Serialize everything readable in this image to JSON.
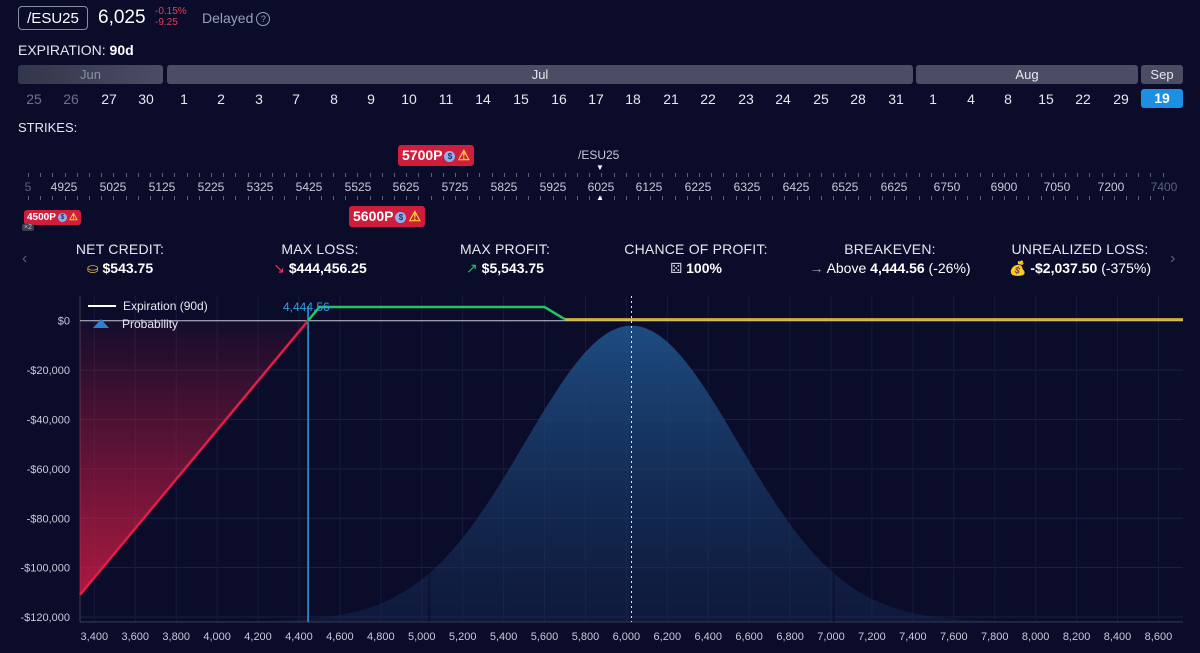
{
  "header": {
    "symbol": "/ESU25",
    "price": "6,025",
    "change_pct": "-0.15%",
    "change_abs": "-9.25",
    "status": "Delayed",
    "help_icon": "help-circle-icon"
  },
  "expiration": {
    "label": "EXPIRATION:",
    "value": "90d",
    "months": [
      "Jun",
      "Jul",
      "Aug",
      "Sep"
    ],
    "days": [
      "25",
      "26",
      "27",
      "30",
      "1",
      "2",
      "3",
      "7",
      "8",
      "9",
      "10",
      "11",
      "14",
      "15",
      "16",
      "17",
      "18",
      "21",
      "22",
      "23",
      "24",
      "25",
      "28",
      "31",
      "1",
      "4",
      "8",
      "15",
      "22",
      "29",
      "19"
    ],
    "selected_day": "19"
  },
  "strikes": {
    "label": "STRIKES:",
    "underlying": "/ESU25",
    "labels": [
      "5",
      "4925",
      "5025",
      "5125",
      "5225",
      "5325",
      "5425",
      "5525",
      "5625",
      "5725",
      "5825",
      "5925",
      "6025",
      "6125",
      "6225",
      "6325",
      "6425",
      "6525",
      "6625",
      "6750",
      "6900",
      "7050",
      "7200",
      "7400"
    ],
    "legs": [
      {
        "label": "5700P",
        "icon": "dollar-icon",
        "warn": "⚠"
      },
      {
        "label": "5600P",
        "icon": "dollar-icon",
        "warn": "⚠"
      },
      {
        "label": "4500P",
        "icon": "dollar-icon",
        "warn": "⚠",
        "qty": "×2"
      }
    ]
  },
  "stats": {
    "net_credit": {
      "label": "NET CREDIT:",
      "value": "$543.75"
    },
    "max_loss": {
      "label": "MAX LOSS:",
      "value": "$444,456.25"
    },
    "max_profit": {
      "label": "MAX PROFIT:",
      "value": "$5,543.75"
    },
    "chance": {
      "label": "CHANCE OF PROFIT:",
      "value": "100%"
    },
    "breakeven": {
      "label": "BREAKEVEN:",
      "prefix": "Above",
      "value": "4,444.56",
      "pct": "(-26%)"
    },
    "unrealized": {
      "label": "UNREALIZED LOSS:",
      "value": "-$2,037.50",
      "pct": "(-375%)"
    }
  },
  "chart_data": {
    "type": "line",
    "legend": [
      "Expiration (90d)",
      "Probability"
    ],
    "breakeven_label": "4,444.56",
    "y_ticks": [
      "$0",
      "-$20,000",
      "-$40,000",
      "-$60,000",
      "-$80,000",
      "-$100,000",
      "-$120,000"
    ],
    "y_tick_values": [
      0,
      -20000,
      -40000,
      -60000,
      -80000,
      -100000,
      -120000
    ],
    "x_ticks": [
      "3,400",
      "3,600",
      "3,800",
      "4,000",
      "4,200",
      "4,400",
      "4,600",
      "4,800",
      "5,000",
      "5,200",
      "5,400",
      "5,600",
      "5,800",
      "6,000",
      "6,200",
      "6,400",
      "6,600",
      "6,800",
      "7,000",
      "7,200",
      "7,400",
      "7,600",
      "7,800",
      "8,000",
      "8,200",
      "8,400",
      "8,600"
    ],
    "x_tick_values": [
      3400,
      3600,
      3800,
      4000,
      4200,
      4400,
      4600,
      4800,
      5000,
      5200,
      5400,
      5600,
      5800,
      6000,
      6200,
      6400,
      6600,
      6800,
      7000,
      7200,
      7400,
      7600,
      7800,
      8000,
      8200,
      8400,
      8600
    ],
    "xlim": [
      3330,
      8720
    ],
    "ylim": [
      -122000,
      10000
    ],
    "current_price": 6025,
    "breakeven": 4444.56,
    "pnl_series": {
      "name": "Expiration (90d)",
      "x": [
        3330,
        4444.56,
        4500,
        5600,
        5700,
        8720
      ],
      "y": [
        -111000,
        0,
        5543.75,
        5543.75,
        543.75,
        543.75
      ]
    },
    "probability": {
      "mean": 6025,
      "sd": 520,
      "peak": 0.94
    },
    "colors": {
      "loss": "#e11d48",
      "profit": "#22c55e",
      "flat": "#d4b22a",
      "prob": "#1e4f86",
      "breakeven": "#2f9ee0"
    }
  }
}
